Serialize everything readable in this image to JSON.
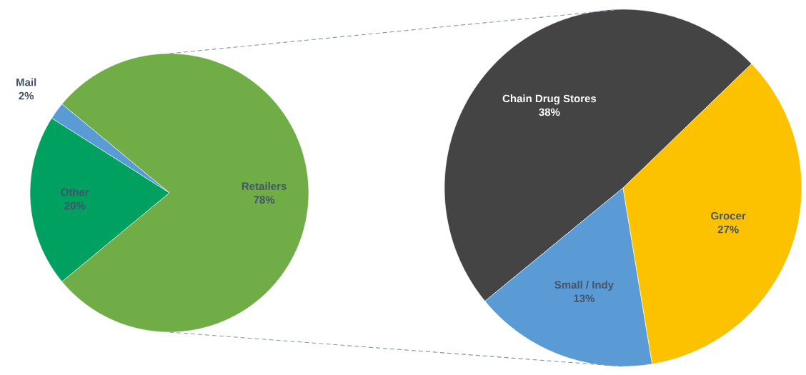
{
  "chart_data": [
    {
      "type": "pie",
      "categories": [
        "Retailers",
        "Mail",
        "Other"
      ],
      "values": [
        78,
        2,
        20
      ],
      "colors": [
        "#70ad47",
        "#5b9bd5",
        "#00a060"
      ],
      "value_labels": [
        "78%",
        "2%",
        "20%"
      ]
    },
    {
      "type": "pie",
      "categories": [
        "Chain Drug Stores",
        "Small / Indy",
        "Grocer"
      ],
      "values": [
        38,
        13,
        27
      ],
      "colors": [
        "#444444",
        "#5b9bd5",
        "#fcc200"
      ],
      "value_labels": [
        "38%",
        "13%",
        "27%"
      ]
    }
  ]
}
